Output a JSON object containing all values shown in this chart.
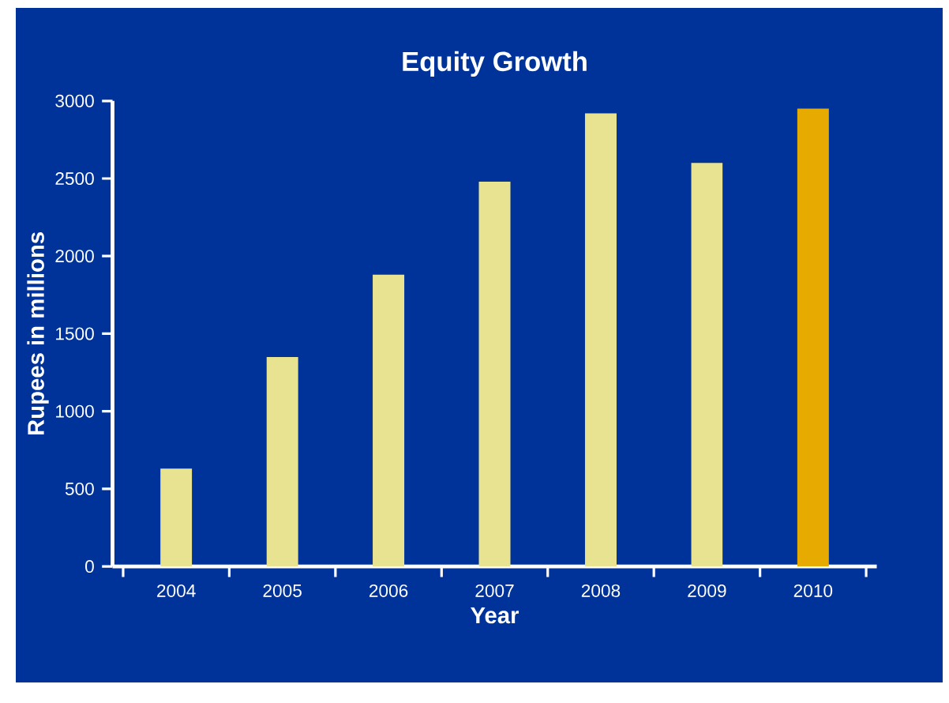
{
  "chart_data": {
    "type": "bar",
    "title": "Equity Growth",
    "xlabel": "Year",
    "ylabel": "Rupees in millions",
    "categories": [
      "2004",
      "2005",
      "2006",
      "2007",
      "2008",
      "2009",
      "2010"
    ],
    "values": [
      630,
      1350,
      1880,
      2480,
      2920,
      2600,
      2950
    ],
    "colors": [
      "#e8e391",
      "#e8e391",
      "#e8e391",
      "#e8e391",
      "#e8e391",
      "#e8e391",
      "#e6aa00"
    ],
    "ylim": [
      0,
      3000
    ],
    "yticks": [
      0,
      500,
      1000,
      1500,
      2000,
      2500,
      3000
    ]
  }
}
